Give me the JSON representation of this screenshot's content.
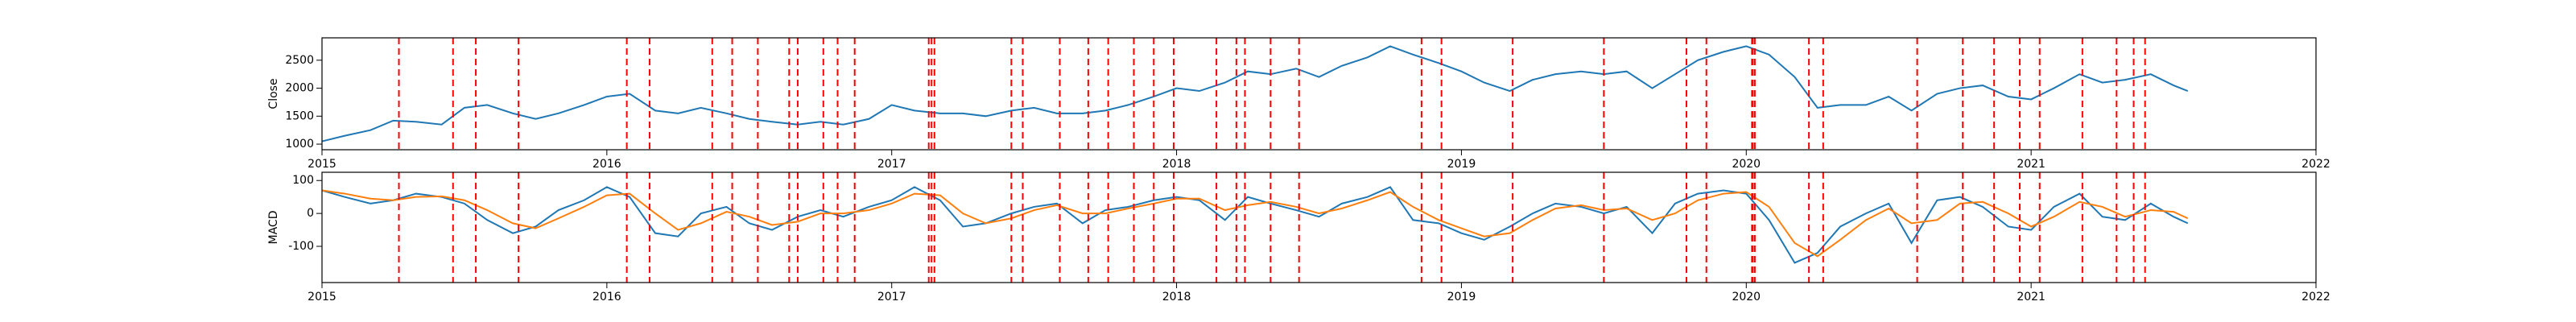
{
  "chart_data": [
    {
      "type": "line",
      "ylabel": "Close",
      "x": [
        2015.0,
        2015.08,
        2015.17,
        2015.25,
        2015.33,
        2015.42,
        2015.5,
        2015.58,
        2015.67,
        2015.75,
        2015.83,
        2015.92,
        2016.0,
        2016.08,
        2016.17,
        2016.25,
        2016.33,
        2016.42,
        2016.5,
        2016.58,
        2016.67,
        2016.75,
        2016.83,
        2016.92,
        2017.0,
        2017.08,
        2017.17,
        2017.25,
        2017.33,
        2017.42,
        2017.5,
        2017.58,
        2017.67,
        2017.75,
        2017.83,
        2017.92,
        2018.0,
        2018.08,
        2018.17,
        2018.25,
        2018.33,
        2018.42,
        2018.5,
        2018.58,
        2018.67,
        2018.75,
        2018.83,
        2018.92,
        2019.0,
        2019.08,
        2019.17,
        2019.25,
        2019.33,
        2019.42,
        2019.5,
        2019.58,
        2019.67,
        2019.75,
        2019.83,
        2019.92,
        2020.0,
        2020.08,
        2020.17,
        2020.25,
        2020.33,
        2020.42,
        2020.5,
        2020.58,
        2020.67,
        2020.75,
        2020.83,
        2020.92,
        2021.0,
        2021.08,
        2021.17,
        2021.25,
        2021.33,
        2021.42,
        2021.5,
        2021.55
      ],
      "series": [
        {
          "color": "#1f77b4",
          "values": [
            1050,
            1150,
            1250,
            1420,
            1400,
            1350,
            1650,
            1700,
            1550,
            1450,
            1550,
            1700,
            1850,
            1900,
            1600,
            1550,
            1650,
            1550,
            1450,
            1400,
            1350,
            1400,
            1350,
            1450,
            1700,
            1600,
            1550,
            1550,
            1500,
            1600,
            1650,
            1550,
            1550,
            1600,
            1700,
            1850,
            2000,
            1950,
            2100,
            2300,
            2250,
            2350,
            2200,
            2400,
            2550,
            2750,
            2600,
            2450,
            2300,
            2100,
            1950,
            2150,
            2250,
            2300,
            2250,
            2300,
            2000,
            2250,
            2500,
            2650,
            2750,
            2600,
            2200,
            1650,
            1700,
            1700,
            1850,
            1600,
            1900,
            2000,
            2050,
            1850,
            1800,
            2000,
            2250,
            2100,
            2150,
            2250,
            2050,
            1950
          ]
        }
      ],
      "xlim": [
        2015,
        2022
      ],
      "xticks": [
        2015,
        2016,
        2017,
        2018,
        2019,
        2020,
        2021,
        2022
      ],
      "ylim": [
        900,
        2900
      ],
      "yticks": [
        1000,
        1500,
        2000,
        2500
      ],
      "vlines": [
        2015.27,
        2015.46,
        2015.54,
        2015.69,
        2016.07,
        2016.15,
        2016.37,
        2016.44,
        2016.53,
        2016.64,
        2016.67,
        2016.76,
        2016.81,
        2016.87,
        2017.13,
        2017.14,
        2017.15,
        2017.42,
        2017.46,
        2017.59,
        2017.69,
        2017.76,
        2017.85,
        2017.92,
        2017.99,
        2018.14,
        2018.21,
        2018.24,
        2018.33,
        2018.43,
        2018.86,
        2018.93,
        2019.18,
        2019.5,
        2019.79,
        2019.86,
        2020.02,
        2020.023,
        2020.03,
        2020.22,
        2020.27,
        2020.6,
        2020.76,
        2020.87,
        2020.96,
        2021.03,
        2021.18,
        2021.3,
        2021.36,
        2021.4
      ],
      "vline_color": "red"
    },
    {
      "type": "line",
      "ylabel": "MACD",
      "x": [
        2015.0,
        2015.08,
        2015.17,
        2015.25,
        2015.33,
        2015.42,
        2015.5,
        2015.58,
        2015.67,
        2015.75,
        2015.83,
        2015.92,
        2016.0,
        2016.08,
        2016.17,
        2016.25,
        2016.33,
        2016.42,
        2016.5,
        2016.58,
        2016.67,
        2016.75,
        2016.83,
        2016.92,
        2017.0,
        2017.08,
        2017.17,
        2017.25,
        2017.33,
        2017.42,
        2017.5,
        2017.58,
        2017.67,
        2017.75,
        2017.83,
        2017.92,
        2018.0,
        2018.08,
        2018.17,
        2018.25,
        2018.33,
        2018.42,
        2018.5,
        2018.58,
        2018.67,
        2018.75,
        2018.83,
        2018.92,
        2019.0,
        2019.08,
        2019.17,
        2019.25,
        2019.33,
        2019.42,
        2019.5,
        2019.58,
        2019.67,
        2019.75,
        2019.83,
        2019.92,
        2020.0,
        2020.08,
        2020.17,
        2020.25,
        2020.33,
        2020.42,
        2020.5,
        2020.58,
        2020.67,
        2020.75,
        2020.83,
        2020.92,
        2021.0,
        2021.08,
        2021.17,
        2021.25,
        2021.33,
        2021.42,
        2021.5,
        2021.55
      ],
      "series": [
        {
          "color": "#1f77b4",
          "values": [
            70,
            50,
            30,
            40,
            60,
            50,
            30,
            -20,
            -60,
            -40,
            10,
            40,
            80,
            50,
            -60,
            -70,
            0,
            20,
            -30,
            -50,
            -10,
            10,
            -10,
            20,
            40,
            80,
            40,
            -40,
            -30,
            0,
            20,
            30,
            -30,
            10,
            20,
            40,
            50,
            40,
            -20,
            50,
            30,
            10,
            -10,
            30,
            50,
            80,
            -20,
            -30,
            -60,
            -80,
            -40,
            0,
            30,
            20,
            0,
            20,
            -60,
            30,
            60,
            70,
            60,
            -20,
            -150,
            -120,
            -40,
            0,
            30,
            -90,
            40,
            50,
            20,
            -40,
            -50,
            20,
            60,
            -10,
            -20,
            30,
            -10,
            -30
          ]
        },
        {
          "color": "#ff7f0e",
          "values": [
            70,
            60,
            45,
            40,
            50,
            52,
            40,
            10,
            -30,
            -45,
            -15,
            20,
            55,
            60,
            0,
            -50,
            -30,
            5,
            -10,
            -35,
            -25,
            0,
            0,
            10,
            30,
            60,
            55,
            0,
            -30,
            -15,
            10,
            25,
            0,
            0,
            15,
            30,
            45,
            45,
            10,
            25,
            35,
            20,
            0,
            15,
            40,
            65,
            20,
            -20,
            -45,
            -70,
            -60,
            -20,
            15,
            25,
            10,
            15,
            -20,
            0,
            40,
            60,
            65,
            20,
            -90,
            -130,
            -80,
            -20,
            15,
            -30,
            -20,
            30,
            35,
            0,
            -40,
            -10,
            35,
            20,
            -10,
            10,
            5,
            -15
          ]
        }
      ],
      "xlim": [
        2015,
        2022
      ],
      "xticks": [
        2015,
        2016,
        2017,
        2018,
        2019,
        2020,
        2021,
        2022
      ],
      "ylim": [
        -210,
        125
      ],
      "yticks": [
        -100,
        0,
        100
      ],
      "vlines": [
        2015.27,
        2015.46,
        2015.54,
        2015.69,
        2016.07,
        2016.15,
        2016.37,
        2016.44,
        2016.53,
        2016.64,
        2016.67,
        2016.76,
        2016.81,
        2016.87,
        2017.13,
        2017.14,
        2017.15,
        2017.42,
        2017.46,
        2017.59,
        2017.69,
        2017.76,
        2017.85,
        2017.92,
        2017.99,
        2018.14,
        2018.21,
        2018.24,
        2018.33,
        2018.43,
        2018.86,
        2018.93,
        2019.18,
        2019.5,
        2019.79,
        2019.86,
        2020.02,
        2020.023,
        2020.03,
        2020.22,
        2020.27,
        2020.6,
        2020.76,
        2020.87,
        2020.96,
        2021.03,
        2021.18,
        2021.3,
        2021.36,
        2021.4
      ],
      "vline_color": "red"
    }
  ]
}
